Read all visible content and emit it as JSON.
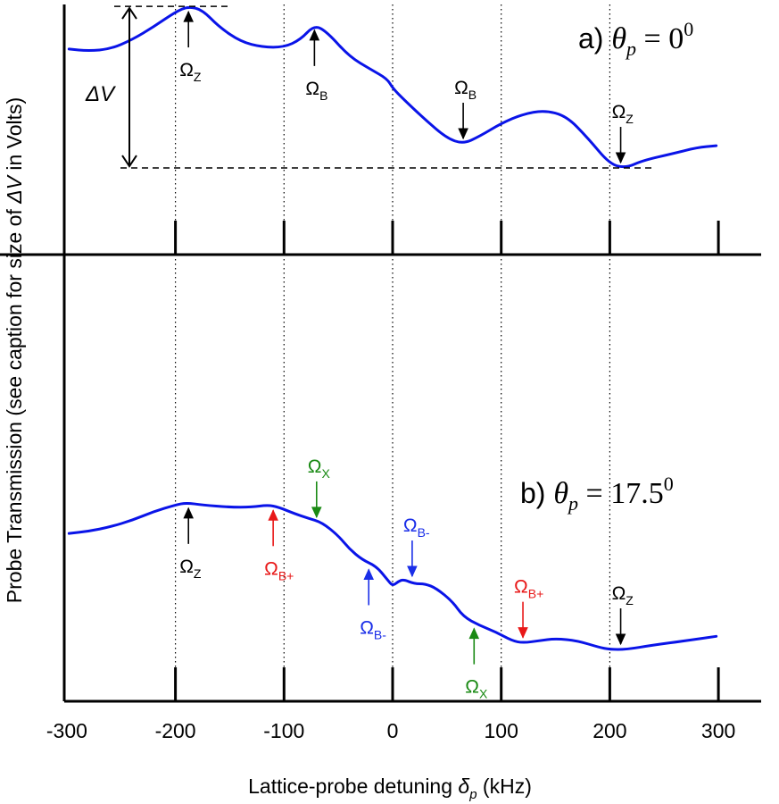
{
  "chart_data": {
    "type": "line",
    "xlabel_prefix": "Lattice-probe detuning ",
    "xlabel_symbol": "δ",
    "xlabel_sub": "p",
    "xlabel_unit": " (kHz)",
    "ylabel_prefix": "Probe Transmission (see caption for size of ",
    "ylabel_symbol": "ΔV",
    "ylabel_suffix": " in Volts)",
    "x_ticks": [
      -300,
      -200,
      -100,
      0,
      100,
      200,
      300
    ],
    "x_tick_labels": [
      "-300",
      "-200",
      "-100",
      "0",
      "100",
      "200",
      "300"
    ],
    "xlim": [
      -300,
      300
    ],
    "ylim": [
      0,
      1
    ],
    "grid_verticals": [
      -200,
      -100,
      0,
      100,
      200
    ],
    "series_color": "#0a14e8",
    "panels": [
      {
        "id": "a",
        "label_prefix": "a) ",
        "theta_symbol": "θ",
        "theta_sub": "p",
        "theta_value": " = 0",
        "theta_sup": "0",
        "points": [
          [
            -298,
            0.76
          ],
          [
            -280,
            0.75
          ],
          [
            -260,
            0.76
          ],
          [
            -240,
            0.81
          ],
          [
            -220,
            0.88
          ],
          [
            -200,
            0.96
          ],
          [
            -188,
            0.99
          ],
          [
            -175,
            0.97
          ],
          [
            -160,
            0.88
          ],
          [
            -140,
            0.8
          ],
          [
            -120,
            0.77
          ],
          [
            -100,
            0.77
          ],
          [
            -85,
            0.81
          ],
          [
            -72,
            0.89
          ],
          [
            -60,
            0.85
          ],
          [
            -40,
            0.72
          ],
          [
            -20,
            0.65
          ],
          [
            -5,
            0.6
          ],
          [
            0,
            0.55
          ],
          [
            10,
            0.49
          ],
          [
            30,
            0.38
          ],
          [
            50,
            0.28
          ],
          [
            65,
            0.25
          ],
          [
            80,
            0.29
          ],
          [
            100,
            0.36
          ],
          [
            120,
            0.41
          ],
          [
            140,
            0.43
          ],
          [
            160,
            0.4
          ],
          [
            180,
            0.28
          ],
          [
            200,
            0.14
          ],
          [
            215,
            0.12
          ],
          [
            230,
            0.16
          ],
          [
            260,
            0.2
          ],
          [
            280,
            0.23
          ],
          [
            298,
            0.24
          ]
        ],
        "delta_v_label": "ΔV",
        "annotations": [
          {
            "x": -188,
            "y": 0.99,
            "symbol": "Ω",
            "sub": "Z",
            "dir": "up",
            "color": "#000000"
          },
          {
            "x": -72,
            "y": 0.89,
            "symbol": "Ω",
            "sub": "B",
            "dir": "up",
            "color": "#000000"
          },
          {
            "x": 65,
            "y": 0.25,
            "symbol": "Ω",
            "sub": "B",
            "dir": "down",
            "color": "#000000"
          },
          {
            "x": 210,
            "y": 0.12,
            "symbol": "Ω",
            "sub": "Z",
            "dir": "down",
            "color": "#000000"
          }
        ]
      },
      {
        "id": "b",
        "label_prefix": "b) ",
        "theta_symbol": "θ",
        "theta_sub": "p",
        "theta_value": " = 17.5",
        "theta_sup": "0",
        "points": [
          [
            -298,
            0.53
          ],
          [
            -280,
            0.54
          ],
          [
            -260,
            0.56
          ],
          [
            -240,
            0.59
          ],
          [
            -220,
            0.63
          ],
          [
            -200,
            0.66
          ],
          [
            -190,
            0.67
          ],
          [
            -175,
            0.66
          ],
          [
            -150,
            0.65
          ],
          [
            -130,
            0.65
          ],
          [
            -115,
            0.66
          ],
          [
            -105,
            0.65
          ],
          [
            -90,
            0.62
          ],
          [
            -78,
            0.6
          ],
          [
            -65,
            0.58
          ],
          [
            -50,
            0.52
          ],
          [
            -40,
            0.46
          ],
          [
            -28,
            0.41
          ],
          [
            -15,
            0.38
          ],
          [
            -5,
            0.32
          ],
          [
            0,
            0.29
          ],
          [
            5,
            0.31
          ],
          [
            10,
            0.32
          ],
          [
            20,
            0.3
          ],
          [
            30,
            0.3
          ],
          [
            40,
            0.28
          ],
          [
            55,
            0.22
          ],
          [
            65,
            0.15
          ],
          [
            80,
            0.11
          ],
          [
            95,
            0.08
          ],
          [
            110,
            0.04
          ],
          [
            120,
            0.03
          ],
          [
            135,
            0.04
          ],
          [
            150,
            0.05
          ],
          [
            170,
            0.04
          ],
          [
            190,
            0.01
          ],
          [
            200,
            0.0
          ],
          [
            215,
            0.0
          ],
          [
            240,
            0.02
          ],
          [
            270,
            0.04
          ],
          [
            298,
            0.06
          ]
        ],
        "annotations": [
          {
            "x": -188,
            "y": 0.67,
            "symbol": "Ω",
            "sub": "Z",
            "dir": "up",
            "color": "#000000"
          },
          {
            "x": -110,
            "y": 0.66,
            "symbol": "Ω",
            "sub": "B+",
            "dir": "up",
            "color": "#e81818"
          },
          {
            "x": -70,
            "y": 0.58,
            "symbol": "Ω",
            "sub": "X",
            "dir": "down",
            "color": "#1a8a14"
          },
          {
            "x": -22,
            "y": 0.39,
            "symbol": "Ω",
            "sub": "B-",
            "dir": "up",
            "color": "#1a2ee8"
          },
          {
            "x": 18,
            "y": 0.31,
            "symbol": "Ω",
            "sub": "B-",
            "dir": "down",
            "color": "#1a2ee8"
          },
          {
            "x": 75,
            "y": 0.12,
            "symbol": "Ω",
            "sub": "X",
            "dir": "up",
            "color": "#1a8a14"
          },
          {
            "x": 120,
            "y": 0.03,
            "symbol": "Ω",
            "sub": "B+",
            "dir": "down",
            "color": "#e81818"
          },
          {
            "x": 210,
            "y": 0.0,
            "symbol": "Ω",
            "sub": "Z",
            "dir": "down",
            "color": "#000000"
          }
        ]
      }
    ]
  }
}
